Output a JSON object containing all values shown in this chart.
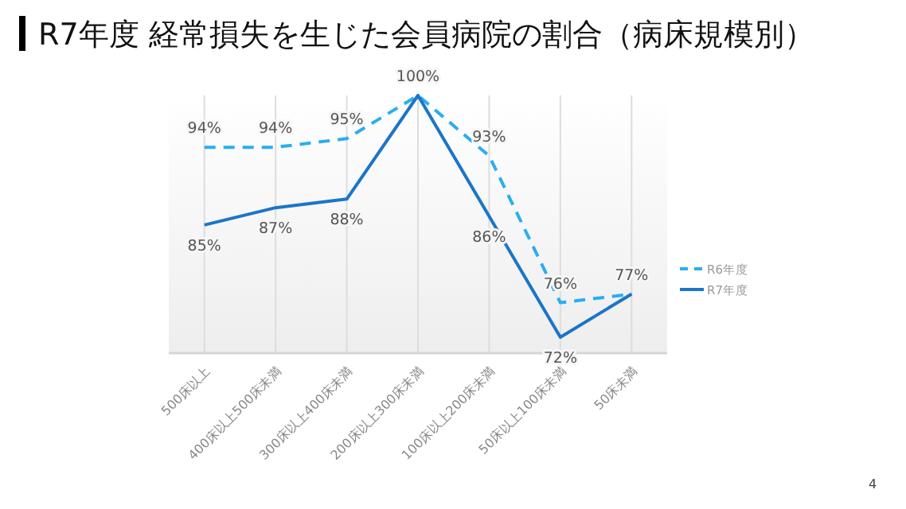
{
  "chart_data": {
    "type": "line",
    "title": "R7年度 経常損失を生じた会員病院の割合（病床規模別）",
    "categories": [
      "500床以上",
      "400床以上500床未満",
      "300床以上400床未満",
      "200床以上300床未満",
      "100床以上200床未満",
      "50床以上100床未満",
      "50床未満"
    ],
    "series": [
      {
        "name": "R6年度",
        "color": "#29aef0",
        "line_style": "dashed",
        "values": [
          94,
          94,
          95,
          100,
          93,
          76,
          77
        ],
        "value_labels": [
          "94%",
          "94%",
          "95%",
          "100%",
          "93%",
          "76%",
          "77%"
        ]
      },
      {
        "name": "R7年度",
        "color": "#1b75c9",
        "line_style": "solid",
        "values": [
          85,
          87,
          88,
          100,
          86,
          72,
          77
        ],
        "value_labels": [
          "85%",
          "87%",
          "88%",
          null,
          "86%",
          "72%",
          null
        ]
      }
    ],
    "grid": "x",
    "legend": "right",
    "marker": "none",
    "annotations": [
      "4"
    ]
  }
}
